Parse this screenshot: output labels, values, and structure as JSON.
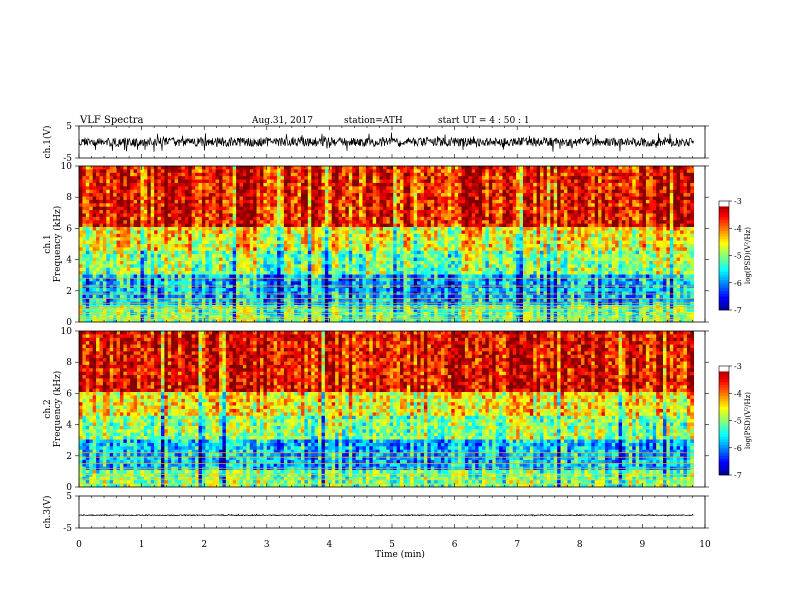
{
  "header": {
    "title": "VLF  Spectra",
    "date": "Aug.31, 2017",
    "station": "station=ATH",
    "start": "start  UT  =  4  : 50 : 1"
  },
  "chart_data": [
    {
      "type": "line",
      "name": "ch1-waveform",
      "ylabel": "ch.1(V)",
      "ylim": [
        -5,
        5
      ],
      "yticks": [
        "5",
        "-5"
      ],
      "xlim": [
        0,
        10
      ],
      "data_end_min": 9.82,
      "trace_color": "#000000",
      "description_values": {
        "mean": 0.0,
        "amplitude": 1.4
      }
    },
    {
      "type": "heatmap",
      "name": "ch1-spectrogram",
      "ylabel": "ch.1\nFrequency  (kHz)",
      "ylim": [
        0,
        10
      ],
      "yticks": [
        "0",
        "2",
        "4",
        "6",
        "8",
        "10"
      ],
      "xlim": [
        0,
        10
      ],
      "data_end_min": 9.82,
      "colorbar": {
        "label": "log(PSD)(V²/Hz)",
        "ticks": [
          "-3",
          "-4",
          "-5",
          "-6",
          "-7"
        ],
        "range": [
          -7,
          -3
        ]
      },
      "bands_khz": [
        0.15,
        0.3,
        0.55,
        0.8,
        1.0,
        1.2,
        1.5,
        1.8,
        2.3,
        2.8
      ]
    },
    {
      "type": "heatmap",
      "name": "ch2-spectrogram",
      "ylabel": "ch.2\nFrequency  (kHz)",
      "ylim": [
        0,
        10
      ],
      "yticks": [
        "0",
        "2",
        "4",
        "6",
        "8",
        "10"
      ],
      "xlim": [
        0,
        10
      ],
      "data_end_min": 9.82,
      "colorbar": {
        "label": "log(PSD)(V²/Hz)",
        "ticks": [
          "-3",
          "-4",
          "-5",
          "-6",
          "-7"
        ],
        "range": [
          -7,
          -3
        ]
      },
      "bands_khz": [
        0.2,
        0.5,
        0.8,
        1.2,
        1.5,
        1.9,
        2.2
      ]
    },
    {
      "type": "line",
      "name": "ch3-waveform",
      "ylabel": "ch.3(V)",
      "ylim": [
        -5,
        5
      ],
      "yticks": [
        "5",
        "-5"
      ],
      "xlim": [
        0,
        10
      ],
      "data_end_min": 9.82,
      "trace_color": "#000000",
      "description_values": {
        "mean": -1.0,
        "amplitude": 0.15
      }
    }
  ],
  "xaxis": {
    "label": "Time  (min)",
    "ticks": [
      "0",
      "1",
      "2",
      "3",
      "4",
      "5",
      "6",
      "7",
      "8",
      "9",
      "10"
    ]
  }
}
